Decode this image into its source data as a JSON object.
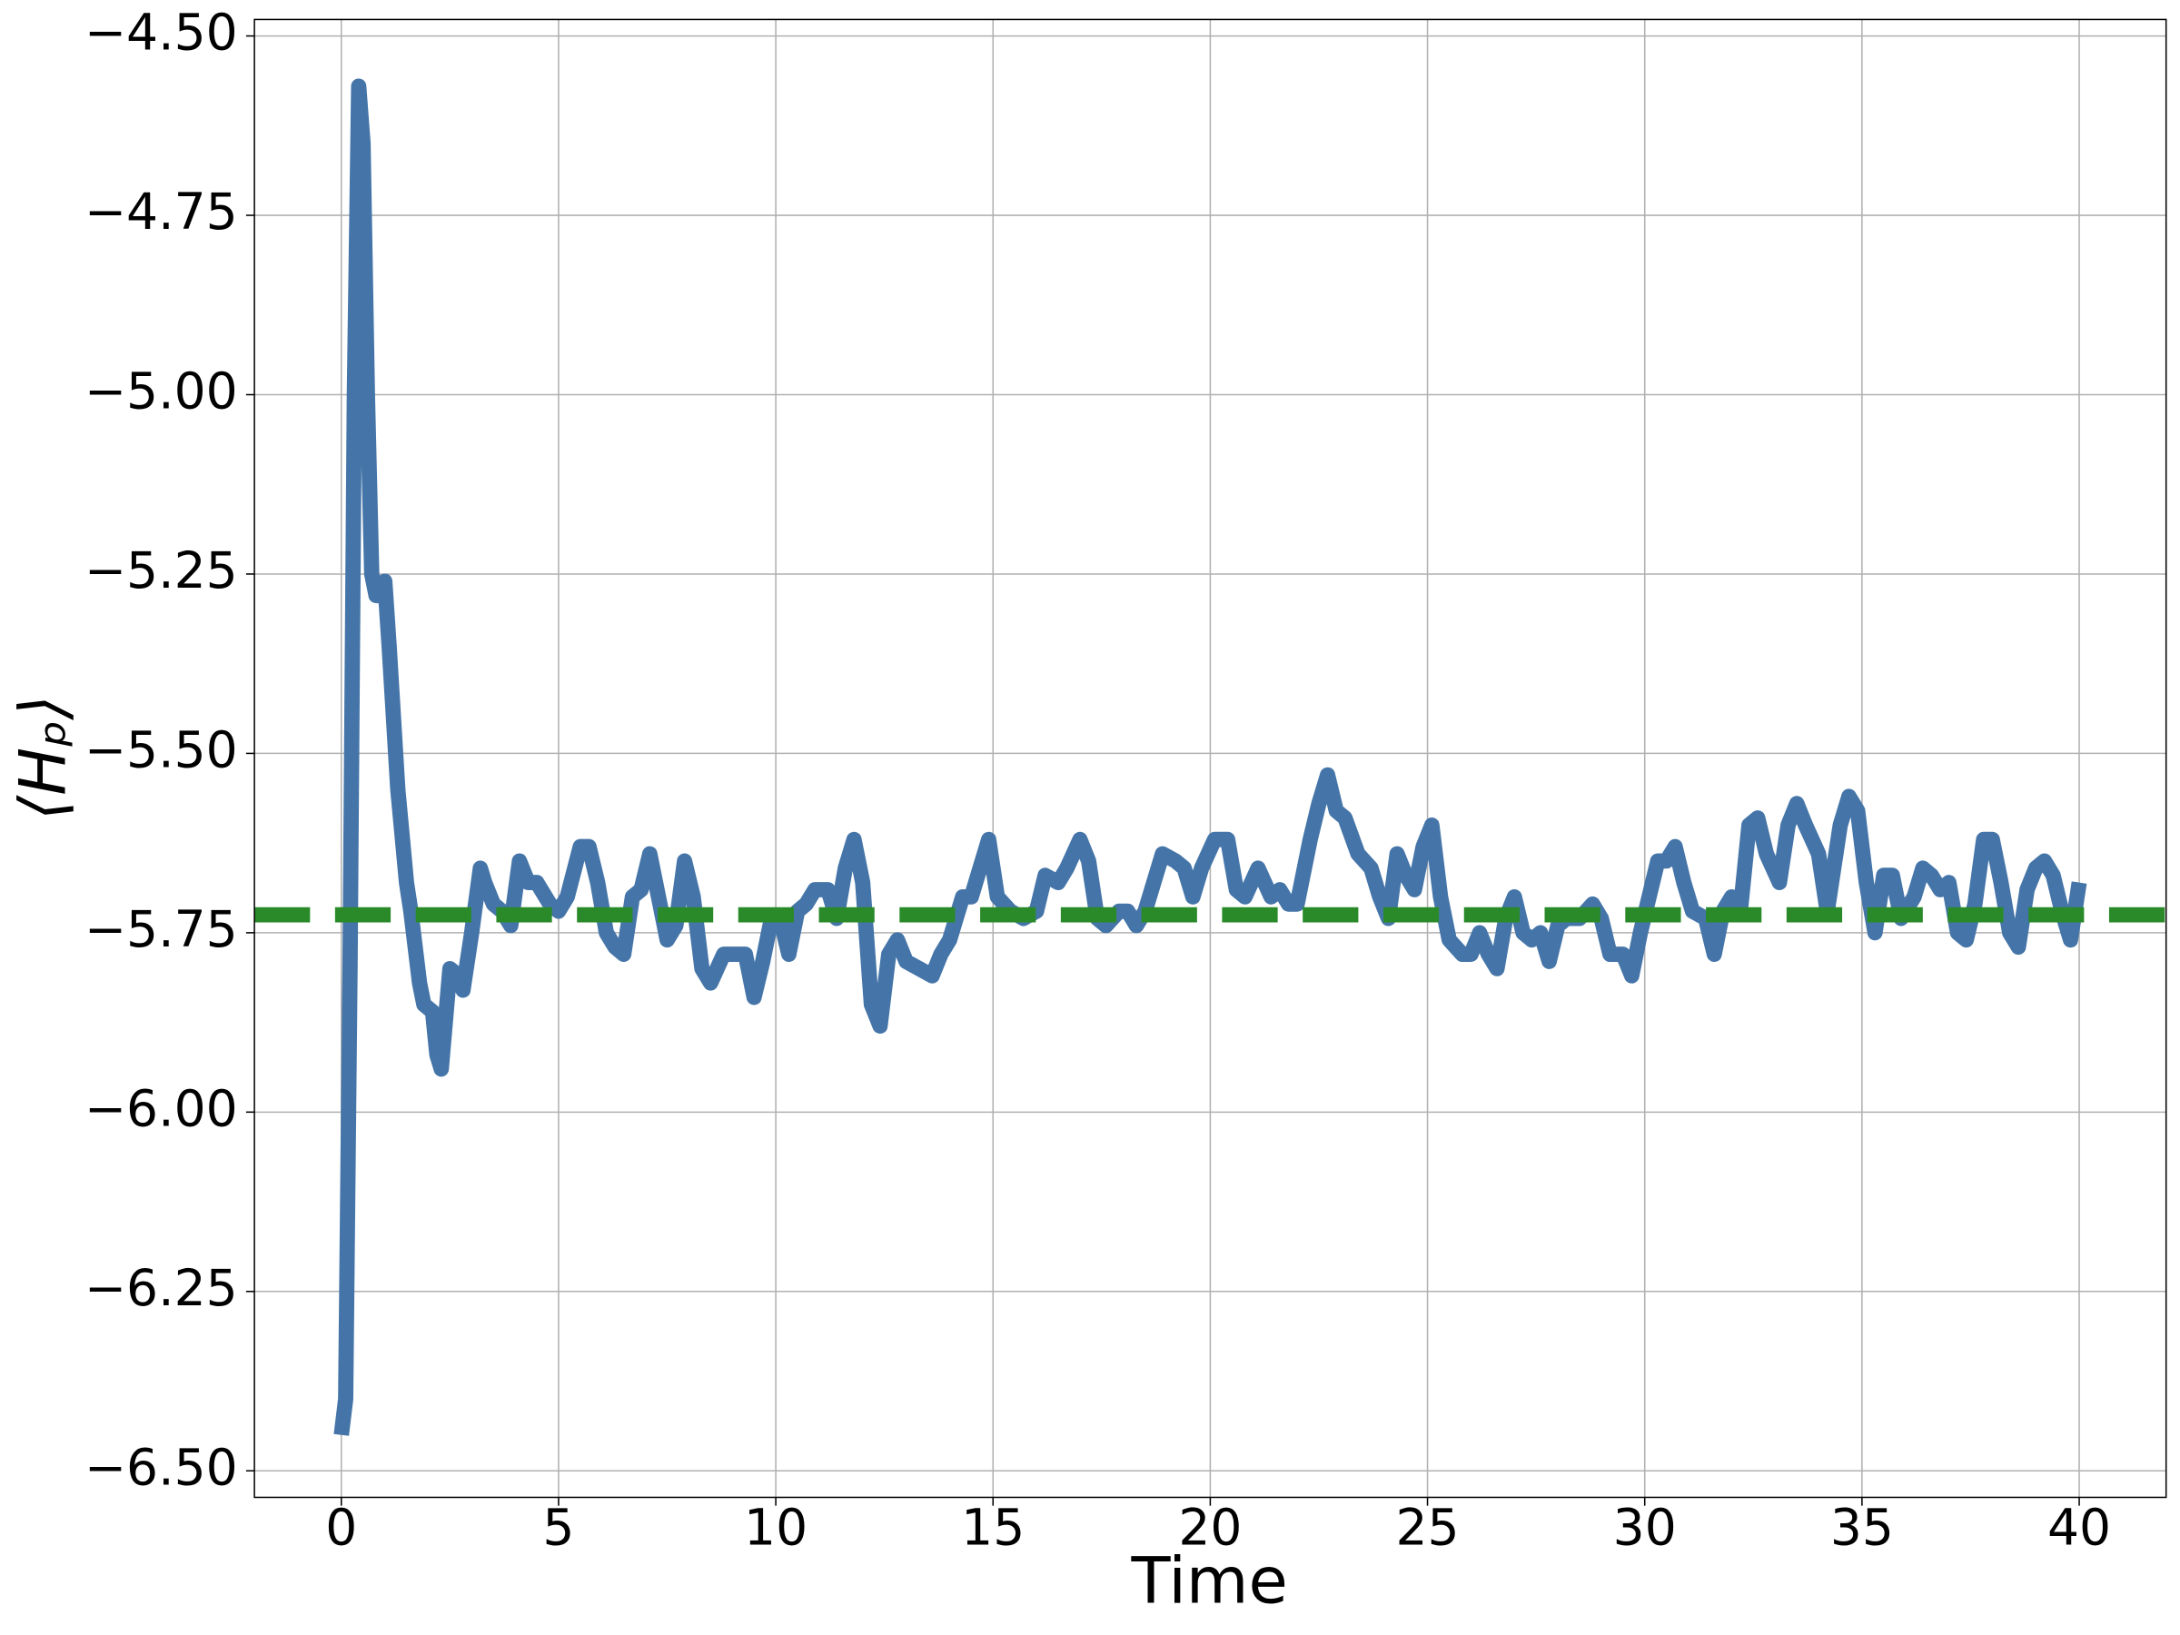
{
  "chart_data": {
    "type": "line",
    "xlabel": "Time",
    "ylabel": "⟨Hₚ⟩",
    "x": [
      0,
      0.1,
      0.2,
      0.3,
      0.4,
      0.5,
      0.6,
      0.7,
      0.8,
      0.9,
      1.0,
      1.1,
      1.3,
      1.5,
      1.6,
      1.8,
      1.9,
      2.1,
      2.2,
      2.3,
      2.5,
      2.7,
      2.8,
      3.0,
      3.2,
      3.3,
      3.5,
      3.7,
      3.9,
      4.1,
      4.3,
      4.5,
      4.8,
      5.0,
      5.2,
      5.5,
      5.7,
      5.9,
      6.1,
      6.3,
      6.5,
      6.7,
      6.9,
      7.1,
      7.3,
      7.5,
      7.7,
      7.9,
      8.1,
      8.3,
      8.5,
      8.8,
      9.1,
      9.3,
      9.5,
      9.7,
      9.9,
      10.1,
      10.3,
      10.5,
      10.7,
      10.9,
      11.2,
      11.4,
      11.6,
      11.8,
      12.0,
      12.2,
      12.4,
      12.6,
      12.8,
      13.0,
      13.3,
      13.6,
      13.8,
      14.0,
      14.3,
      14.5,
      14.7,
      14.9,
      15.1,
      15.4,
      15.7,
      16.0,
      16.2,
      16.5,
      16.7,
      17.0,
      17.2,
      17.4,
      17.6,
      17.9,
      18.1,
      18.3,
      18.5,
      18.7,
      18.9,
      19.2,
      19.4,
      19.6,
      19.8,
      20.1,
      20.4,
      20.6,
      20.8,
      21.1,
      21.4,
      21.6,
      21.8,
      22.0,
      22.3,
      22.5,
      22.7,
      22.9,
      23.1,
      23.4,
      23.7,
      23.9,
      24.1,
      24.3,
      24.5,
      24.7,
      24.9,
      25.1,
      25.3,
      25.5,
      25.8,
      26.0,
      26.2,
      26.4,
      26.6,
      26.8,
      27.0,
      27.2,
      27.4,
      27.6,
      27.8,
      28.0,
      28.2,
      28.5,
      28.8,
      29.0,
      29.2,
      29.5,
      29.7,
      29.9,
      30.1,
      30.3,
      30.5,
      30.7,
      30.9,
      31.1,
      31.4,
      31.6,
      31.8,
      32.0,
      32.2,
      32.4,
      32.6,
      32.8,
      33.1,
      33.3,
      33.5,
      33.7,
      34.0,
      34.2,
      34.5,
      34.7,
      34.9,
      35.1,
      35.3,
      35.5,
      35.7,
      35.9,
      36.2,
      36.4,
      36.6,
      36.8,
      37.0,
      37.2,
      37.4,
      37.6,
      37.8,
      38.0,
      38.2,
      38.4,
      38.6,
      38.8,
      39.0,
      39.2,
      39.4,
      39.6,
      39.8,
      40.0
    ],
    "series": [
      {
        "color": "#4575a8",
        "values": [
          -6.45,
          -6.4,
          -5.8,
          -5.0,
          -4.57,
          -4.65,
          -5.0,
          -5.25,
          -5.28,
          -5.28,
          -5.26,
          -5.35,
          -5.55,
          -5.68,
          -5.72,
          -5.82,
          -5.85,
          -5.86,
          -5.92,
          -5.94,
          -5.8,
          -5.81,
          -5.83,
          -5.75,
          -5.66,
          -5.68,
          -5.71,
          -5.72,
          -5.74,
          -5.65,
          -5.68,
          -5.68,
          -5.71,
          -5.72,
          -5.7,
          -5.63,
          -5.63,
          -5.68,
          -5.75,
          -5.77,
          -5.78,
          -5.7,
          -5.69,
          -5.64,
          -5.7,
          -5.76,
          -5.74,
          -5.65,
          -5.7,
          -5.8,
          -5.82,
          -5.78,
          -5.78,
          -5.78,
          -5.84,
          -5.79,
          -5.73,
          -5.73,
          -5.78,
          -5.72,
          -5.71,
          -5.69,
          -5.69,
          -5.73,
          -5.66,
          -5.62,
          -5.68,
          -5.85,
          -5.88,
          -5.78,
          -5.76,
          -5.79,
          -5.8,
          -5.81,
          -5.78,
          -5.76,
          -5.7,
          -5.7,
          -5.66,
          -5.62,
          -5.7,
          -5.72,
          -5.73,
          -5.72,
          -5.67,
          -5.68,
          -5.66,
          -5.62,
          -5.65,
          -5.73,
          -5.74,
          -5.72,
          -5.72,
          -5.74,
          -5.72,
          -5.68,
          -5.64,
          -5.65,
          -5.66,
          -5.7,
          -5.66,
          -5.62,
          -5.62,
          -5.69,
          -5.7,
          -5.66,
          -5.7,
          -5.69,
          -5.71,
          -5.71,
          -5.62,
          -5.57,
          -5.53,
          -5.58,
          -5.59,
          -5.64,
          -5.66,
          -5.7,
          -5.73,
          -5.64,
          -5.67,
          -5.69,
          -5.63,
          -5.6,
          -5.7,
          -5.76,
          -5.78,
          -5.78,
          -5.75,
          -5.78,
          -5.8,
          -5.73,
          -5.7,
          -5.75,
          -5.76,
          -5.75,
          -5.79,
          -5.74,
          -5.73,
          -5.73,
          -5.71,
          -5.73,
          -5.78,
          -5.78,
          -5.81,
          -5.75,
          -5.7,
          -5.65,
          -5.65,
          -5.63,
          -5.68,
          -5.72,
          -5.73,
          -5.78,
          -5.72,
          -5.7,
          -5.72,
          -5.6,
          -5.59,
          -5.64,
          -5.68,
          -5.6,
          -5.57,
          -5.6,
          -5.64,
          -5.72,
          -5.6,
          -5.56,
          -5.58,
          -5.68,
          -5.75,
          -5.67,
          -5.67,
          -5.73,
          -5.7,
          -5.66,
          -5.67,
          -5.69,
          -5.68,
          -5.75,
          -5.76,
          -5.71,
          -5.62,
          -5.62,
          -5.68,
          -5.75,
          -5.77,
          -5.69,
          -5.66,
          -5.65,
          -5.67,
          -5.72,
          -5.76,
          -5.68
        ]
      }
    ],
    "hline": {
      "value": -5.725,
      "color": "#2a8a2a"
    },
    "xlim": [
      -2,
      42
    ],
    "xticks": [
      0,
      5,
      10,
      15,
      20,
      25,
      30,
      35,
      40
    ],
    "ylim": [
      -6.537,
      -4.477
    ],
    "yticks": [
      {
        "value": -6.5,
        "label": "−6.50"
      },
      {
        "value": -6.25,
        "label": "−6.25"
      },
      {
        "value": -6.0,
        "label": "−6.00"
      },
      {
        "value": -5.75,
        "label": "−5.75"
      },
      {
        "value": -5.5,
        "label": "−5.50"
      },
      {
        "value": -5.25,
        "label": "−5.25"
      },
      {
        "value": -5.0,
        "label": "−5.00"
      },
      {
        "value": -4.75,
        "label": "−4.75"
      },
      {
        "value": -4.5,
        "label": "−4.50"
      }
    ],
    "grid": true
  }
}
